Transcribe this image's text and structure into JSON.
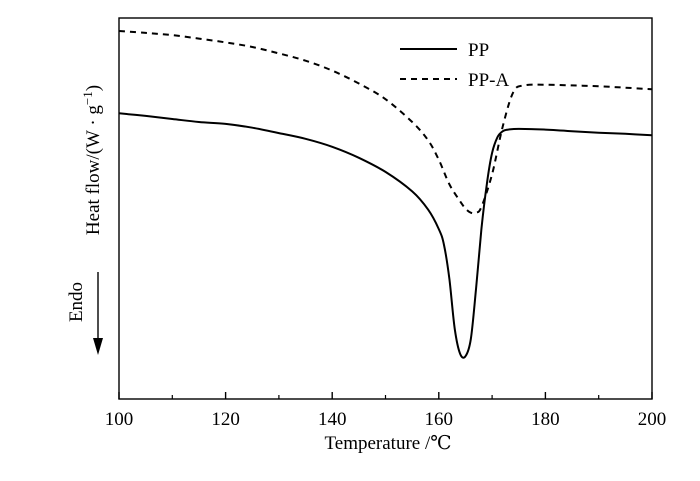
{
  "chart_data": {
    "type": "line",
    "title": "",
    "xlabel": "Temperature /℃",
    "ylabel": "Heat flow/(W · g",
    "ylabel_exponent": "−1",
    "ylabel_close": ")",
    "endo_label": "Endo",
    "xlim": [
      100,
      200
    ],
    "ylim": [
      0,
      100
    ],
    "x_ticks": [
      100,
      120,
      140,
      160,
      180,
      200
    ],
    "x_tick_labels": [
      "100",
      "120",
      "140",
      "160",
      "180",
      "200"
    ],
    "y_ticks_shown": false,
    "grid": false,
    "legend_position": "top-right",
    "series": [
      {
        "name": "PP",
        "style": "solid",
        "color": "#000000",
        "x": [
          100,
          105,
          110,
          115,
          120,
          125,
          130,
          135,
          140,
          145,
          150,
          155,
          158,
          160,
          161,
          162,
          163,
          164,
          165,
          166,
          167,
          168,
          169,
          170,
          171,
          172,
          173,
          175,
          180,
          185,
          190,
          195,
          200
        ],
        "y": [
          75,
          74.3,
          73.5,
          72.7,
          72.2,
          71.2,
          69.8,
          68.3,
          66.2,
          63.3,
          59.6,
          54.5,
          49.7,
          44.6,
          40.3,
          31.3,
          18.3,
          11.9,
          11.2,
          15.7,
          29.1,
          44.6,
          56.3,
          64.6,
          68.7,
          70.3,
          70.7,
          70.9,
          70.7,
          70.3,
          69.9,
          69.6,
          69.2
        ]
      },
      {
        "name": "PP-A",
        "style": "dashed",
        "color": "#000000",
        "x": [
          100,
          105,
          110,
          115,
          120,
          125,
          130,
          135,
          140,
          145,
          150,
          155,
          158,
          160,
          162,
          164,
          165,
          166,
          167,
          168,
          170,
          172,
          174,
          176,
          180,
          185,
          190,
          195,
          200
        ],
        "y": [
          96.6,
          96.1,
          95.5,
          94.6,
          93.6,
          92.4,
          90.7,
          88.8,
          86.2,
          82.8,
          78.7,
          72.7,
          67.9,
          62.8,
          56.3,
          51.9,
          50.0,
          48.9,
          48.9,
          50.4,
          59.0,
          71.6,
          80.6,
          82.3,
          82.5,
          82.3,
          82.1,
          81.7,
          81.3
        ]
      }
    ]
  }
}
